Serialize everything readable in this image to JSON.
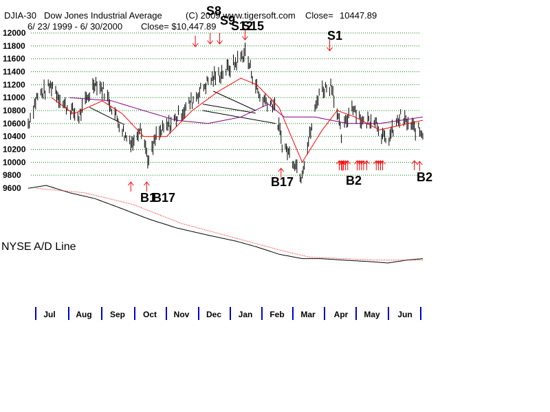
{
  "header": {
    "symbol": "DJIA-30",
    "name": "Dow Jones Industrial Average",
    "copyright": "(C) 2009 www.tigersoft.com",
    "close_label": "Close=",
    "close_value": "10447.89",
    "date_range": "6/ 23/ 1999 -  6/ 30/2000",
    "close_line": "Close= $10,447.89"
  },
  "chart_data": {
    "type": "line",
    "y_ticks": [
      9600,
      9800,
      10000,
      10200,
      10400,
      10600,
      10800,
      11000,
      11200,
      11400,
      11600,
      11800,
      12000
    ],
    "ylim": [
      9600,
      12000
    ],
    "grid": "horizontal dotted",
    "months": [
      "Jul",
      "Aug",
      "Sep",
      "Oct",
      "Nov",
      "Dec",
      "Jan",
      "Feb",
      "Mar",
      "Apr",
      "May",
      "Jun"
    ],
    "x_range": [
      "1999-06-23",
      "2000-06-30"
    ],
    "series": [
      {
        "name": "",
        "kind": "price",
        "color": "#000000"
      },
      {
        "name": "",
        "kind": "moving-average-short",
        "color": "#ff0000"
      },
      {
        "name": "",
        "kind": "moving-average-long",
        "color": "#800080"
      }
    ],
    "price_key": [
      [
        "1999-06-23",
        10600
      ],
      [
        "1999-07-01",
        11000
      ],
      [
        "1999-07-16",
        11200
      ],
      [
        "1999-07-26",
        10900
      ],
      [
        "1999-08-10",
        10700
      ],
      [
        "1999-08-25",
        11250
      ],
      [
        "1999-09-03",
        11100
      ],
      [
        "1999-09-23",
        10400
      ],
      [
        "1999-10-01",
        10300
      ],
      [
        "1999-10-07",
        10600
      ],
      [
        "1999-10-15",
        10000
      ],
      [
        "1999-10-22",
        10400
      ],
      [
        "1999-11-05",
        10600
      ],
      [
        "1999-11-25",
        10950
      ],
      [
        "1999-12-10",
        11250
      ],
      [
        "1999-12-20",
        11350
      ],
      [
        "2000-01-03",
        11500
      ],
      [
        "2000-01-14",
        11700
      ],
      [
        "2000-01-28",
        11000
      ],
      [
        "2000-02-10",
        10900
      ],
      [
        "2000-02-18",
        10300
      ],
      [
        "2000-03-01",
        10000
      ],
      [
        "2000-03-07",
        9800
      ],
      [
        "2000-03-15",
        10400
      ],
      [
        "2000-03-24",
        11100
      ],
      [
        "2000-04-05",
        11200
      ],
      [
        "2000-04-14",
        10400
      ],
      [
        "2000-04-24",
        10900
      ],
      [
        "2000-05-05",
        10600
      ],
      [
        "2000-05-15",
        10700
      ],
      [
        "2000-05-26",
        10300
      ],
      [
        "2000-06-09",
        10700
      ],
      [
        "2000-06-19",
        10550
      ],
      [
        "2000-06-30",
        10447.89
      ]
    ],
    "ma_short_key": [
      [
        "1999-07-15",
        11000
      ],
      [
        "1999-08-05",
        10750
      ],
      [
        "1999-09-01",
        10950
      ],
      [
        "1999-09-20",
        10750
      ],
      [
        "1999-10-10",
        10400
      ],
      [
        "1999-11-01",
        10400
      ],
      [
        "1999-11-25",
        10800
      ],
      [
        "1999-12-20",
        11100
      ],
      [
        "2000-01-10",
        11300
      ],
      [
        "2000-01-25",
        11200
      ],
      [
        "2000-02-15",
        10850
      ],
      [
        "2000-03-08",
        10000
      ],
      [
        "2000-03-27",
        10500
      ],
      [
        "2000-04-10",
        10800
      ],
      [
        "2000-04-27",
        10700
      ],
      [
        "2000-05-20",
        10500
      ],
      [
        "2000-06-30",
        10650
      ]
    ],
    "ma_long_key": [
      [
        "1999-08-01",
        11000
      ],
      [
        "1999-09-10",
        10950
      ],
      [
        "1999-10-10",
        10800
      ],
      [
        "1999-11-10",
        10650
      ],
      [
        "1999-12-10",
        10600
      ],
      [
        "2000-01-10",
        10700
      ],
      [
        "2000-02-05",
        10900
      ],
      [
        "2000-02-20",
        10700
      ],
      [
        "2000-03-20",
        10700
      ],
      [
        "2000-04-20",
        10600
      ],
      [
        "2000-05-20",
        10600
      ],
      [
        "2000-06-30",
        10700
      ]
    ],
    "trendlines": [
      {
        "from": [
          "1999-08-20",
          10850
        ],
        "to": [
          "1999-09-22",
          10580
        ]
      },
      {
        "from": [
          "1999-12-05",
          10800
        ],
        "to": [
          "2000-02-12",
          10600
        ]
      },
      {
        "from": [
          "1999-12-05",
          10900
        ],
        "to": [
          "2000-01-24",
          10760
        ]
      },
      {
        "from": [
          "1999-12-15",
          11100
        ],
        "to": [
          "2000-01-24",
          10800
        ]
      }
    ],
    "signals": [
      {
        "label": "S8",
        "type": "sell",
        "date": "1999-11-28"
      },
      {
        "label": "S9",
        "type": "sell",
        "date": "1999-12-12"
      },
      {
        "label": "S12",
        "type": "sell",
        "date": "1999-12-21"
      },
      {
        "label": "S15",
        "type": "sell",
        "date": "2000-01-14"
      },
      {
        "label": "S1",
        "type": "sell",
        "date": "2000-04-03"
      },
      {
        "label": "B1",
        "type": "buy",
        "date": "1999-09-28"
      },
      {
        "label": "B17",
        "type": "buy",
        "date": "1999-10-13"
      },
      {
        "label": "B17",
        "type": "buy",
        "date": "2000-02-17"
      },
      {
        "label": "B2",
        "type": "buy",
        "date": "2000-04-15"
      },
      {
        "label": "B2",
        "type": "buy",
        "date": "2000-06-27"
      }
    ],
    "buy_arrow_dates": [
      "2000-04-12",
      "2000-04-14",
      "2000-04-16",
      "2000-04-18",
      "2000-04-20",
      "2000-04-29",
      "2000-05-01",
      "2000-05-03",
      "2000-05-05",
      "2000-05-08",
      "2000-05-17",
      "2000-05-19",
      "2000-05-21",
      "2000-05-23",
      "2000-06-22"
    ],
    "ad_line": {
      "label": "NYSE A/D Line",
      "key": [
        [
          "1999-06-23",
          100
        ],
        [
          "1999-07-10",
          102
        ],
        [
          "1999-08-01",
          97
        ],
        [
          "1999-08-25",
          93
        ],
        [
          "1999-09-20",
          86
        ],
        [
          "1999-10-15",
          79
        ],
        [
          "1999-11-10",
          73
        ],
        [
          "1999-12-10",
          68
        ],
        [
          "2000-01-05",
          64
        ],
        [
          "2000-01-25",
          60
        ],
        [
          "2000-02-15",
          55
        ],
        [
          "2000-03-08",
          52
        ],
        [
          "2000-03-25",
          52
        ],
        [
          "2000-04-15",
          51
        ],
        [
          "2000-05-10",
          50
        ],
        [
          "2000-05-28",
          49
        ],
        [
          "2000-06-15",
          51
        ],
        [
          "2000-06-30",
          52
        ]
      ],
      "ma_key": [
        [
          "1999-07-01",
          100
        ],
        [
          "1999-08-15",
          97
        ],
        [
          "1999-09-30",
          89
        ],
        [
          "1999-11-15",
          76
        ],
        [
          "1999-12-31",
          67
        ],
        [
          "2000-02-15",
          58
        ],
        [
          "2000-03-15",
          53
        ],
        [
          "2000-04-15",
          52
        ],
        [
          "2000-05-15",
          51
        ],
        [
          "2000-06-30",
          51
        ]
      ]
    }
  }
}
